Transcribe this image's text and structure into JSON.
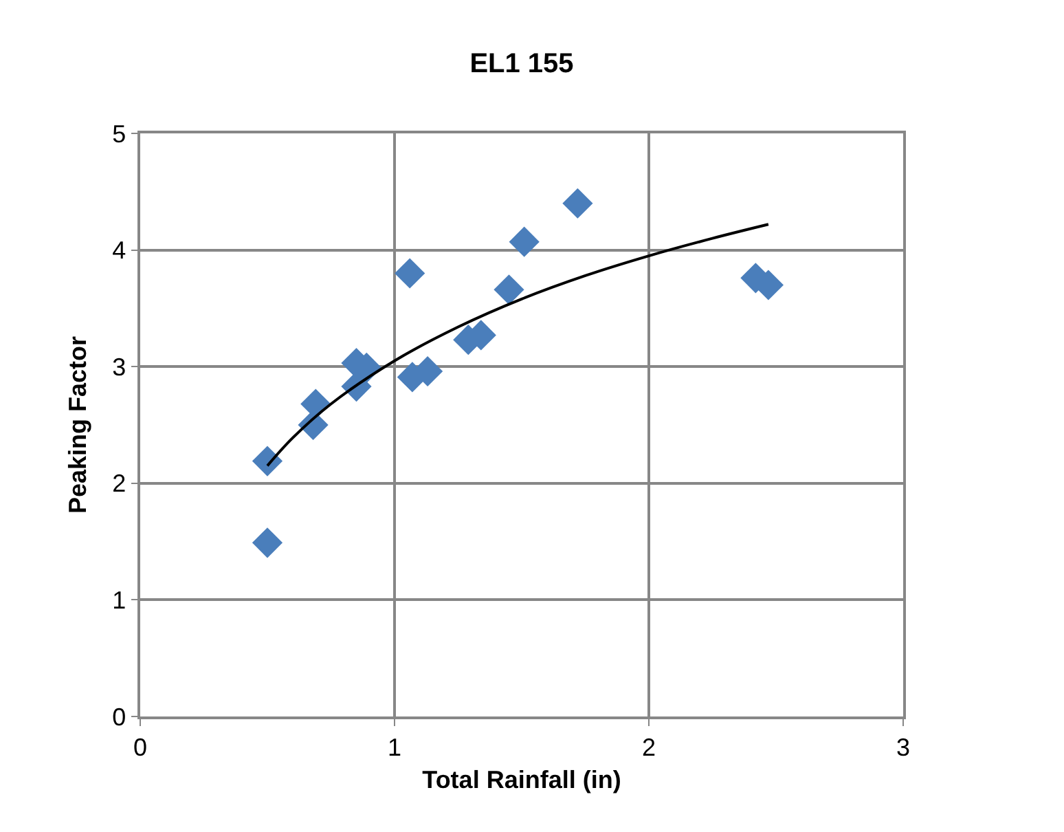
{
  "chart_data": {
    "type": "scatter",
    "title": "EL1 155",
    "xlabel": "Total Rainfall (in)",
    "ylabel": "Peaking Factor",
    "xlim": [
      0,
      3
    ],
    "xticks": [
      0,
      1,
      2,
      3
    ],
    "ylim": [
      0,
      5
    ],
    "yticks": [
      0,
      1,
      2,
      3,
      4,
      5
    ],
    "grid": true,
    "marker": "diamond",
    "series": [
      {
        "color": "#4a7ebb",
        "x": [
          0.5,
          0.5,
          0.68,
          0.69,
          0.85,
          0.89,
          0.85,
          1.06,
          1.07,
          1.13,
          1.29,
          1.34,
          1.45,
          1.51,
          1.72,
          2.42,
          2.47
        ],
        "values": [
          2.19,
          1.49,
          2.5,
          2.68,
          3.03,
          2.99,
          2.83,
          3.8,
          2.91,
          2.96,
          3.23,
          3.27,
          3.66,
          4.07,
          4.4,
          3.76,
          3.7
        ]
      },
      {
        "type": "line",
        "color": "#000000",
        "marker": "none",
        "line_style": "solid",
        "x": [
          0.5,
          0.6,
          0.75,
          1,
          1.25,
          1.5,
          1.75,
          2,
          2.25,
          2.47
        ],
        "values": [
          2.15,
          2.39,
          2.68,
          3.05,
          3.34,
          3.58,
          3.78,
          3.95,
          4.1,
          4.22
        ]
      }
    ]
  }
}
